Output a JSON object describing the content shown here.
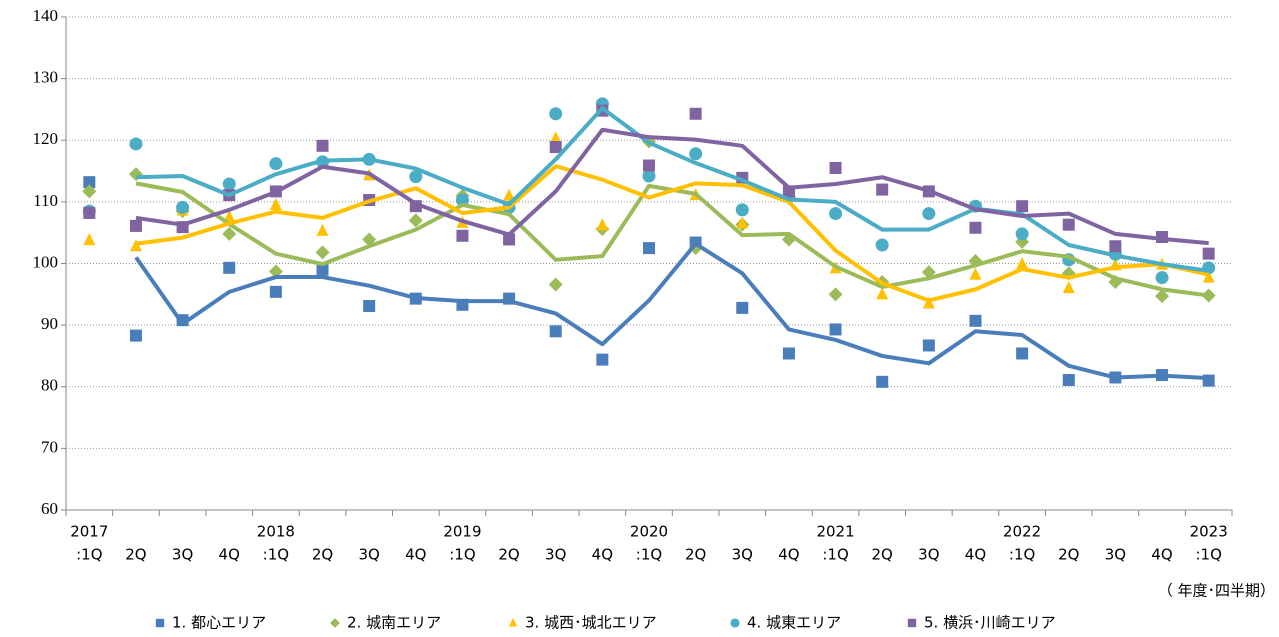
{
  "chart_data": {
    "type": "scatter-trend",
    "years": [
      "2017",
      null,
      null,
      null,
      "2018",
      null,
      null,
      null,
      "2019",
      null,
      null,
      null,
      "2020",
      null,
      null,
      null,
      "2021",
      null,
      null,
      null,
      "2022",
      null,
      null,
      null,
      "2023"
    ],
    "categories": [
      ":1Q",
      "2Q",
      "3Q",
      "4Q",
      ":1Q",
      "2Q",
      "3Q",
      "4Q",
      ":1Q",
      "2Q",
      "3Q",
      "4Q",
      ":1Q",
      "2Q",
      "3Q",
      "4Q",
      ":1Q",
      "2Q",
      "3Q",
      "4Q",
      ":1Q",
      "2Q",
      "3Q",
      "4Q",
      ":1Q"
    ],
    "x_label": "（ 年度･四半期）",
    "ylim": [
      60,
      140
    ],
    "yticks": [
      60,
      70,
      80,
      90,
      100,
      110,
      120,
      130,
      140
    ],
    "grid": true,
    "legend": "bottom",
    "series": [
      {
        "name": "1. 都心エリア",
        "color": "#4a7ebb",
        "marker": "square",
        "values": [
          113.2,
          88.3,
          90.8,
          99.3,
          95.4,
          99.0,
          93.1,
          94.3,
          93.3,
          94.3,
          89.0,
          84.4,
          102.5,
          103.4,
          92.8,
          85.4,
          89.3,
          80.8,
          86.7,
          90.7,
          85.4,
          81.1,
          81.5,
          81.9,
          81.0
        ],
        "trend": [
          null,
          101.0,
          90.2,
          95.4,
          97.8,
          97.8,
          96.4,
          94.4,
          93.9,
          93.9,
          91.9,
          86.9,
          94.0,
          103.2,
          98.4,
          89.3,
          87.6,
          85.0,
          83.8,
          89.0,
          88.4,
          83.4,
          81.5,
          81.8,
          81.4
        ]
      },
      {
        "name": "2. 城南エリア",
        "color": "#9bbb59",
        "marker": "diamond",
        "values": [
          111.7,
          114.5,
          108.5,
          104.8,
          98.7,
          101.8,
          103.9,
          107.0,
          111.0,
          108.9,
          96.6,
          105.6,
          119.8,
          102.5,
          106.3,
          103.9,
          95.0,
          97.0,
          98.6,
          100.4,
          103.5,
          98.4,
          97.0,
          94.7,
          94.8
        ],
        "trend": [
          null,
          113.0,
          111.6,
          106.4,
          101.6,
          99.9,
          102.8,
          105.5,
          109.5,
          108.0,
          100.6,
          101.2,
          112.6,
          111.3,
          104.6,
          104.8,
          99.5,
          96.2,
          97.6,
          99.7,
          102.0,
          101.1,
          97.6,
          95.8,
          94.8
        ]
      },
      {
        "name": "3. 城西･城北エリア",
        "color": "#ffc000",
        "marker": "triangle",
        "values": [
          103.8,
          102.8,
          108.6,
          107.5,
          109.5,
          105.3,
          114.3,
          109.2,
          106.6,
          111.0,
          120.3,
          106.2,
          114.8,
          111.1,
          106.5,
          111.4,
          99.2,
          95.0,
          93.5,
          98.2,
          99.9,
          96.0,
          99.7,
          99.8,
          97.7
        ],
        "trend": [
          null,
          103.2,
          104.2,
          106.5,
          108.4,
          107.4,
          110.1,
          112.2,
          108.2,
          109.1,
          115.8,
          113.6,
          110.7,
          113.0,
          112.7,
          110.0,
          102.1,
          96.8,
          94.0,
          95.8,
          99.1,
          97.7,
          99.4,
          99.9,
          98.2
        ]
      },
      {
        "name": "4. 城東エリア",
        "color": "#4bacc6",
        "marker": "circle",
        "values": [
          108.5,
          119.4,
          109.1,
          112.9,
          116.2,
          116.5,
          116.9,
          114.1,
          110.3,
          109.1,
          124.3,
          125.9,
          114.2,
          117.8,
          108.7,
          110.8,
          108.1,
          103.0,
          108.1,
          109.3,
          104.8,
          100.6,
          101.5,
          97.7,
          99.3
        ],
        "trend": [
          null,
          114.0,
          114.2,
          111.1,
          114.5,
          116.7,
          116.9,
          115.4,
          112.3,
          109.6,
          116.9,
          125.2,
          119.6,
          116.3,
          113.5,
          110.4,
          110.0,
          105.5,
          105.5,
          108.9,
          108.0,
          103.0,
          101.3,
          99.9,
          98.8
        ]
      },
      {
        "name": "5. 横浜･川崎エリア",
        "color": "#8064a2",
        "marker": "square",
        "values": [
          108.2,
          106.1,
          105.9,
          111.1,
          111.7,
          119.1,
          110.3,
          109.3,
          104.5,
          103.9,
          118.9,
          124.8,
          115.9,
          124.3,
          113.9,
          111.7,
          115.5,
          112.0,
          111.7,
          105.8,
          109.3,
          106.3,
          102.8,
          104.3,
          101.6
        ],
        "trend": [
          null,
          107.4,
          106.3,
          108.7,
          111.6,
          115.7,
          114.6,
          109.7,
          106.9,
          104.7,
          111.7,
          121.7,
          120.5,
          120.1,
          119.1,
          112.3,
          112.9,
          114.0,
          111.8,
          108.8,
          107.7,
          108.1,
          104.8,
          104.0,
          103.3
        ]
      }
    ]
  }
}
